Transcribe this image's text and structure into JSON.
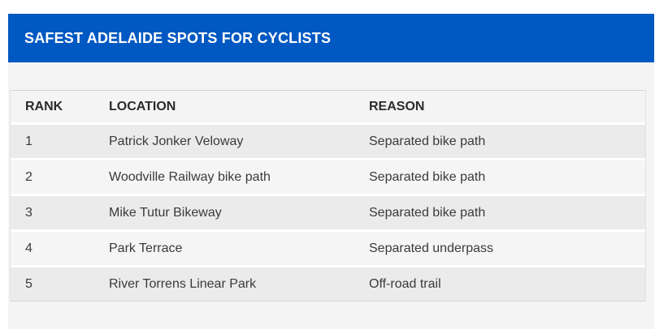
{
  "panel": {
    "title": "SAFEST ADELAIDE SPOTS FOR CYCLISTS"
  },
  "table": {
    "columns": [
      "RANK",
      "LOCATION",
      "REASON"
    ],
    "rows": [
      {
        "rank": "1",
        "location": "Patrick Jonker Veloway",
        "reason": "Separated bike path"
      },
      {
        "rank": "2",
        "location": "Woodville Railway bike path",
        "reason": "Separated bike path"
      },
      {
        "rank": "3",
        "location": "Mike Tutur Bikeway",
        "reason": "Separated bike path"
      },
      {
        "rank": "4",
        "location": "Park Terrace",
        "reason": "Separated underpass"
      },
      {
        "rank": "5",
        "location": "River Torrens Linear Park",
        "reason": "Off-road trail"
      }
    ]
  },
  "colors": {
    "title_bar_bg": "#0058c2",
    "title_text": "#ffffff",
    "page_bg": "#ffffff",
    "content_bg": "#f4f4f4",
    "row_odd_bg": "#ebebeb",
    "row_even_bg": "#f5f5f5",
    "table_border": "#d4d4d4",
    "heading_text": "#2b2b2b",
    "body_text": "#3a3a3a"
  }
}
